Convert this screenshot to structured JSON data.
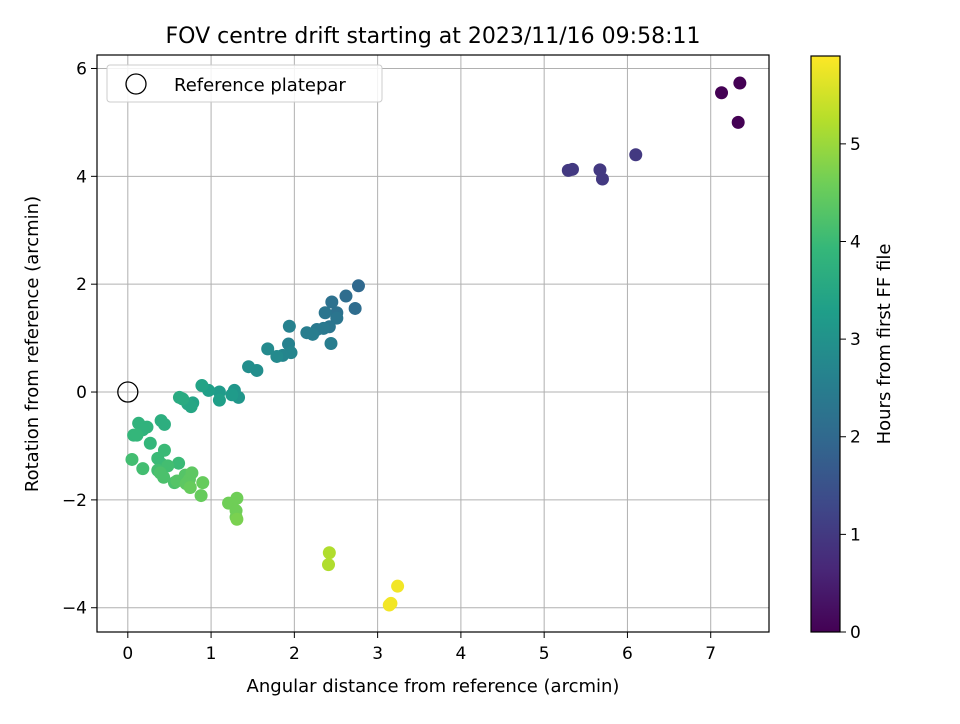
{
  "chart_data": {
    "type": "scatter",
    "title": "FOV centre drift starting at 2023/11/16 09:58:11",
    "xlabel": "Angular distance from reference (arcmin)",
    "ylabel": "Rotation from reference (arcmin)",
    "xlim": [
      -0.37,
      7.7
    ],
    "ylim": [
      -4.45,
      6.25
    ],
    "xticks": [
      0,
      1,
      2,
      3,
      4,
      5,
      6,
      7
    ],
    "yticks": [
      -4,
      -2,
      0,
      2,
      4,
      6
    ],
    "xtick_labels": [
      "0",
      "1",
      "2",
      "3",
      "4",
      "5",
      "6",
      "7"
    ],
    "ytick_labels": [
      "−4",
      "−2",
      "0",
      "2",
      "4",
      "6"
    ],
    "grid": true,
    "legend": {
      "placement": "upper-left",
      "entries": [
        "Reference platepar"
      ]
    },
    "reference_point": {
      "x": 0,
      "y": 0
    },
    "colorbar": {
      "label": "Hours from first FF file",
      "range": [
        0,
        5.9
      ],
      "ticks": [
        0,
        1,
        2,
        3,
        4,
        5
      ],
      "tick_labels": [
        "0",
        "1",
        "2",
        "3",
        "4",
        "5"
      ],
      "colormap": "viridis"
    },
    "colors": {
      "viridis": [
        "#440154",
        "#482878",
        "#3e4989",
        "#31688e",
        "#26828e",
        "#1f9e89",
        "#35b779",
        "#6ece58",
        "#b5de2b",
        "#fde725"
      ]
    },
    "series": [
      {
        "x": [
          7.35,
          7.13,
          7.33,
          5.29,
          5.34,
          5.67,
          5.7,
          6.1,
          2.77,
          2.62,
          2.73,
          2.45,
          2.51,
          2.51,
          2.37,
          2.42,
          2.35,
          2.27,
          2.22,
          2.15,
          2.44,
          1.94,
          1.93,
          1.96,
          1.86,
          1.79,
          1.68,
          1.55,
          1.45,
          1.28,
          1.33,
          1.25,
          1.1,
          1.1,
          0.97,
          0.89,
          0.78,
          0.76,
          0.72,
          0.66,
          0.62,
          0.4,
          0.44,
          0.23,
          0.13,
          0.18,
          0.07,
          0.11,
          0.27,
          0.36,
          0.44,
          0.4,
          0.61,
          0.18,
          0.05,
          0.36,
          0.48,
          0.39,
          0.43,
          0.56,
          0.59,
          0.69,
          0.77,
          0.74,
          0.7,
          0.75,
          0.9,
          0.88,
          1.21,
          1.31,
          1.3,
          1.3,
          1.31,
          2.42,
          2.41,
          3.24,
          3.16,
          3.14
        ],
        "y": [
          5.73,
          5.55,
          5.0,
          4.11,
          4.13,
          4.12,
          3.95,
          4.4,
          1.97,
          1.78,
          1.55,
          1.67,
          1.47,
          1.37,
          1.47,
          1.21,
          1.18,
          1.16,
          1.07,
          1.1,
          0.9,
          1.22,
          0.89,
          0.73,
          0.68,
          0.66,
          0.8,
          0.4,
          0.47,
          0.03,
          -0.1,
          -0.05,
          0.0,
          -0.15,
          0.03,
          0.12,
          -0.2,
          -0.27,
          -0.22,
          -0.13,
          -0.1,
          -0.53,
          -0.6,
          -0.65,
          -0.58,
          -0.7,
          -0.8,
          -0.8,
          -0.95,
          -1.23,
          -1.08,
          -1.33,
          -1.32,
          -1.42,
          -1.25,
          -1.45,
          -1.37,
          -1.5,
          -1.58,
          -1.68,
          -1.65,
          -1.54,
          -1.5,
          -1.62,
          -1.7,
          -1.77,
          -1.68,
          -1.92,
          -2.06,
          -1.97,
          -2.2,
          -2.32,
          -2.36,
          -2.98,
          -3.2,
          -3.6,
          -3.92,
          -3.95
        ],
        "hours": [
          0.0,
          0.0,
          0.0,
          1.0,
          1.0,
          1.0,
          1.0,
          1.0,
          2.0,
          2.1,
          2.1,
          2.2,
          2.2,
          2.3,
          2.3,
          2.3,
          2.4,
          2.4,
          2.5,
          2.5,
          2.5,
          2.6,
          2.6,
          2.7,
          2.7,
          2.8,
          2.8,
          2.9,
          2.9,
          3.1,
          3.1,
          3.2,
          3.2,
          3.3,
          3.3,
          3.4,
          3.4,
          3.5,
          3.5,
          3.6,
          3.6,
          3.7,
          3.7,
          3.8,
          3.8,
          3.8,
          3.9,
          3.9,
          3.9,
          4.0,
          4.0,
          4.0,
          4.0,
          4.1,
          4.1,
          4.1,
          4.1,
          4.2,
          4.2,
          4.2,
          4.3,
          4.3,
          4.4,
          4.4,
          4.4,
          4.5,
          4.5,
          4.5,
          4.6,
          4.6,
          4.6,
          4.6,
          4.7,
          5.2,
          5.2,
          5.8,
          5.8,
          5.8
        ]
      }
    ]
  }
}
